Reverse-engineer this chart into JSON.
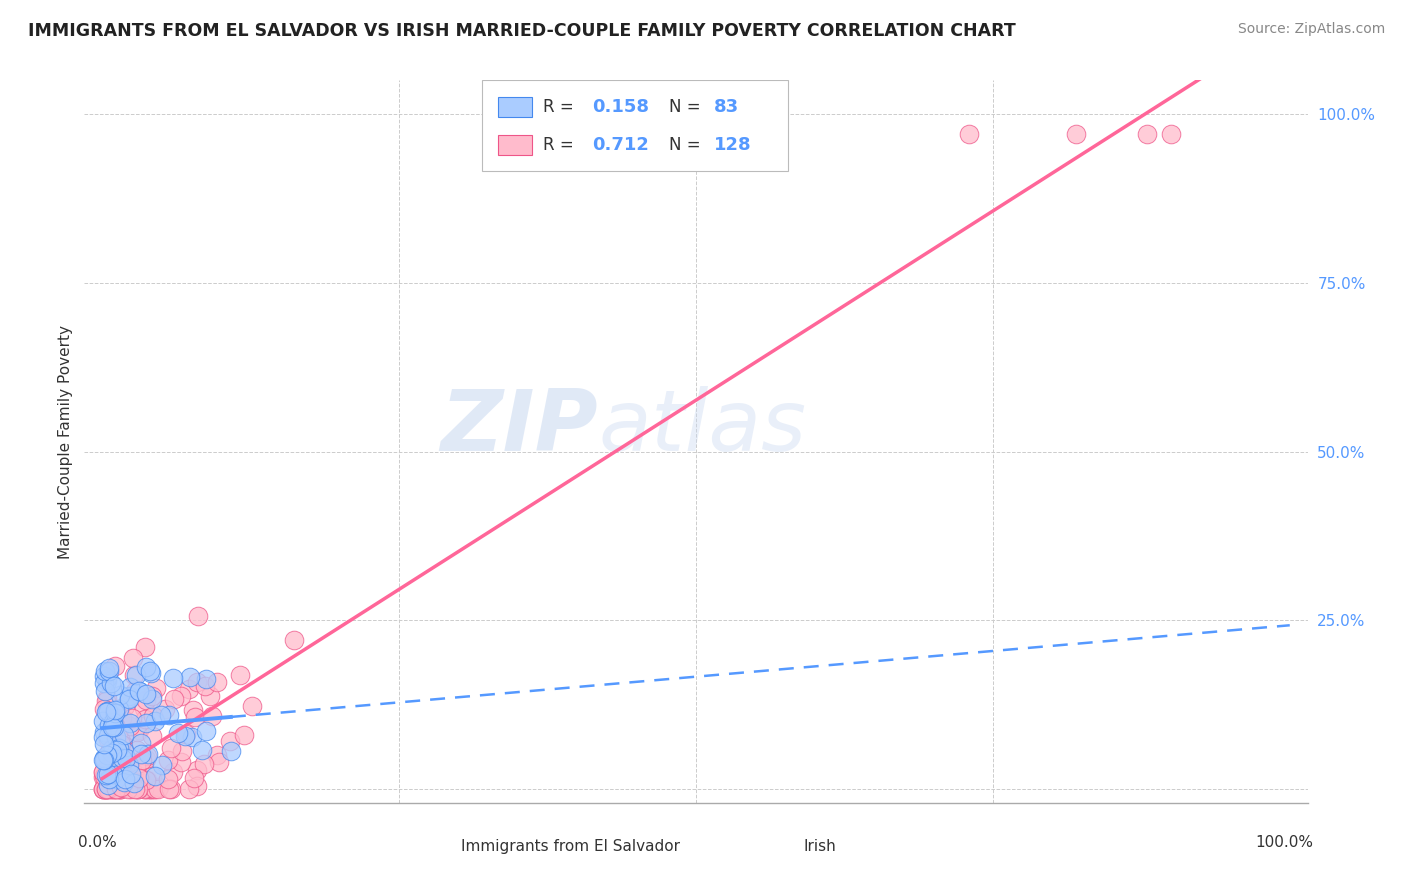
{
  "title": "IMMIGRANTS FROM EL SALVADOR VS IRISH MARRIED-COUPLE FAMILY POVERTY CORRELATION CHART",
  "source": "Source: ZipAtlas.com",
  "ylabel": "Married-Couple Family Poverty",
  "blue_R": 0.158,
  "blue_N": 83,
  "pink_R": 0.712,
  "pink_N": 128,
  "blue_color": "#5599ff",
  "pink_color": "#ff6699",
  "blue_scatter_color": "#aaccff",
  "pink_scatter_color": "#ffbbcc",
  "blue_edge_color": "#4488ee",
  "pink_edge_color": "#ee5588",
  "watermark_zip": "ZIP",
  "watermark_atlas": "atlas",
  "background_color": "#ffffff",
  "grid_color": "#cccccc",
  "right_tick_color": "#5599ff",
  "title_color": "#222222",
  "source_color": "#888888",
  "label_color": "#333333"
}
